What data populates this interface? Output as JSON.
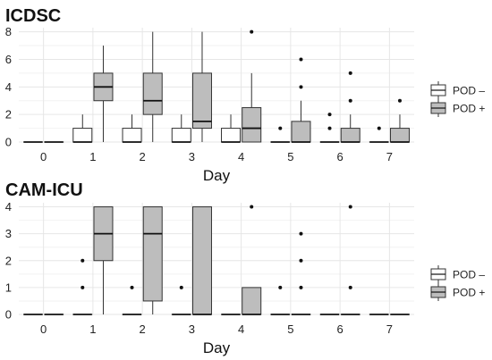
{
  "chart_data": [
    {
      "type": "boxplot",
      "title": "ICDSC",
      "xlabel": "Day",
      "ylabel": "",
      "categories": [
        "0",
        "1",
        "2",
        "3",
        "4",
        "5",
        "6",
        "7"
      ],
      "yticks": [
        "0",
        "2",
        "4",
        "6",
        "8"
      ],
      "ylim": [
        0,
        8.3
      ],
      "grid": true,
      "legend_position": "right",
      "series": [
        {
          "name": "POD –",
          "color": "#ffffff",
          "boxes": [
            {
              "day": "0",
              "min": 0,
              "q1": 0,
              "median": 0,
              "q3": 0,
              "max": 0,
              "outliers": []
            },
            {
              "day": "1",
              "min": 0,
              "q1": 0,
              "median": 0,
              "q3": 1,
              "max": 2,
              "outliers": []
            },
            {
              "day": "2",
              "min": 0,
              "q1": 0,
              "median": 0,
              "q3": 1,
              "max": 2,
              "outliers": []
            },
            {
              "day": "3",
              "min": 0,
              "q1": 0,
              "median": 0,
              "q3": 1,
              "max": 2,
              "outliers": []
            },
            {
              "day": "4",
              "min": 0,
              "q1": 0,
              "median": 0,
              "q3": 1,
              "max": 2,
              "outliers": []
            },
            {
              "day": "5",
              "min": 0,
              "q1": 0,
              "median": 0,
              "q3": 0,
              "max": 0,
              "outliers": [
                1
              ]
            },
            {
              "day": "6",
              "min": 0,
              "q1": 0,
              "median": 0,
              "q3": 0,
              "max": 0,
              "outliers": [
                1,
                2
              ]
            },
            {
              "day": "7",
              "min": 0,
              "q1": 0,
              "median": 0,
              "q3": 0,
              "max": 0,
              "outliers": [
                1
              ]
            }
          ]
        },
        {
          "name": "POD +",
          "color": "#bdbdbd",
          "boxes": [
            {
              "day": "0",
              "min": 0,
              "q1": 0,
              "median": 0,
              "q3": 0,
              "max": 0,
              "outliers": []
            },
            {
              "day": "1",
              "min": 0,
              "q1": 3,
              "median": 4,
              "q3": 5,
              "max": 7,
              "outliers": []
            },
            {
              "day": "2",
              "min": 0,
              "q1": 2,
              "median": 3,
              "q3": 5,
              "max": 8,
              "outliers": []
            },
            {
              "day": "3",
              "min": 0,
              "q1": 1,
              "median": 1.5,
              "q3": 5,
              "max": 8,
              "outliers": []
            },
            {
              "day": "4",
              "min": 0,
              "q1": 0,
              "median": 1,
              "q3": 2.5,
              "max": 5,
              "outliers": [
                8
              ]
            },
            {
              "day": "5",
              "min": 0,
              "q1": 0,
              "median": 0,
              "q3": 1.5,
              "max": 3,
              "outliers": [
                4,
                6
              ]
            },
            {
              "day": "6",
              "min": 0,
              "q1": 0,
              "median": 0,
              "q3": 1,
              "max": 2,
              "outliers": [
                3,
                5
              ]
            },
            {
              "day": "7",
              "min": 0,
              "q1": 0,
              "median": 0,
              "q3": 1,
              "max": 2,
              "outliers": [
                3
              ]
            }
          ]
        }
      ]
    },
    {
      "type": "boxplot",
      "title": "CAM-ICU",
      "xlabel": "Day",
      "ylabel": "",
      "categories": [
        "0",
        "1",
        "2",
        "3",
        "4",
        "5",
        "6",
        "7"
      ],
      "yticks": [
        "0",
        "1",
        "2",
        "3",
        "4"
      ],
      "ylim": [
        0,
        4.15
      ],
      "grid": true,
      "legend_position": "right",
      "series": [
        {
          "name": "POD –",
          "color": "#ffffff",
          "boxes": [
            {
              "day": "0",
              "min": 0,
              "q1": 0,
              "median": 0,
              "q3": 0,
              "max": 0,
              "outliers": []
            },
            {
              "day": "1",
              "min": 0,
              "q1": 0,
              "median": 0,
              "q3": 0,
              "max": 0,
              "outliers": [
                1,
                2
              ]
            },
            {
              "day": "2",
              "min": 0,
              "q1": 0,
              "median": 0,
              "q3": 0,
              "max": 0,
              "outliers": [
                1
              ]
            },
            {
              "day": "3",
              "min": 0,
              "q1": 0,
              "median": 0,
              "q3": 0,
              "max": 0,
              "outliers": [
                1
              ]
            },
            {
              "day": "4",
              "min": 0,
              "q1": 0,
              "median": 0,
              "q3": 0,
              "max": 0,
              "outliers": []
            },
            {
              "day": "5",
              "min": 0,
              "q1": 0,
              "median": 0,
              "q3": 0,
              "max": 0,
              "outliers": [
                1
              ]
            },
            {
              "day": "6",
              "min": 0,
              "q1": 0,
              "median": 0,
              "q3": 0,
              "max": 0,
              "outliers": []
            },
            {
              "day": "7",
              "min": 0,
              "q1": 0,
              "median": 0,
              "q3": 0,
              "max": 0,
              "outliers": []
            }
          ]
        },
        {
          "name": "POD +",
          "color": "#bdbdbd",
          "boxes": [
            {
              "day": "0",
              "min": 0,
              "q1": 0,
              "median": 0,
              "q3": 0,
              "max": 0,
              "outliers": []
            },
            {
              "day": "1",
              "min": 0,
              "q1": 2,
              "median": 3,
              "q3": 4,
              "max": 4,
              "outliers": []
            },
            {
              "day": "2",
              "min": 0,
              "q1": 0.5,
              "median": 3,
              "q3": 4,
              "max": 4,
              "outliers": []
            },
            {
              "day": "3",
              "min": 0,
              "q1": 0,
              "median": 0,
              "q3": 4,
              "max": 4,
              "outliers": []
            },
            {
              "day": "4",
              "min": 0,
              "q1": 0,
              "median": 0,
              "q3": 1,
              "max": 1,
              "outliers": [
                4
              ]
            },
            {
              "day": "5",
              "min": 0,
              "q1": 0,
              "median": 0,
              "q3": 0,
              "max": 0,
              "outliers": [
                1,
                2,
                3
              ]
            },
            {
              "day": "6",
              "min": 0,
              "q1": 0,
              "median": 0,
              "q3": 0,
              "max": 0,
              "outliers": [
                1,
                4
              ]
            },
            {
              "day": "7",
              "min": 0,
              "q1": 0,
              "median": 0,
              "q3": 0,
              "max": 0,
              "outliers": []
            }
          ]
        }
      ]
    }
  ],
  "colors": {
    "box_stroke": "#333333",
    "outlier": "#111111",
    "grid": "#e6e6e6"
  }
}
